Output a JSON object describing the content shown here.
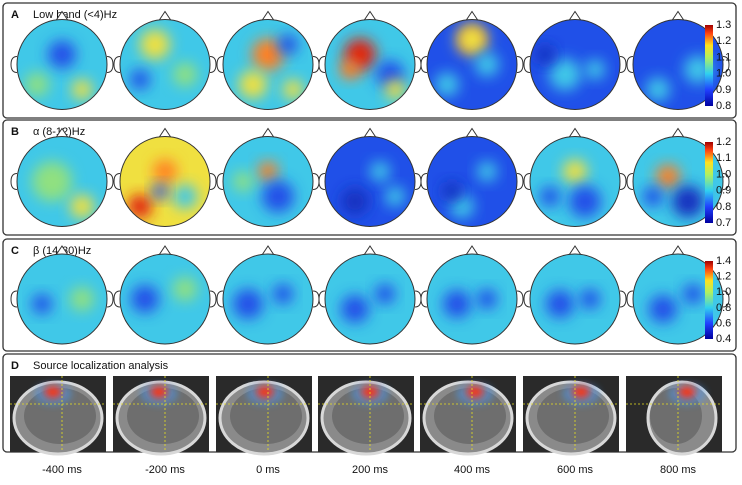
{
  "panels": [
    {
      "letter": "A",
      "title": "Low band (<4)Hz",
      "colorbar_labels": [
        "1.3",
        "1.2",
        "1.1",
        "1.0",
        "0.9",
        "0.8"
      ]
    },
    {
      "letter": "B",
      "title": "α (8-12)Hz",
      "colorbar_labels": [
        "1.2",
        "1.1",
        "1.0",
        "0.9",
        "0.8",
        "0.7"
      ]
    },
    {
      "letter": "C",
      "title": "β (14-30)Hz",
      "colorbar_labels": [
        "1.4",
        "1.2",
        "1.0",
        "0.8",
        "0.6",
        "0.4"
      ]
    },
    {
      "letter": "D",
      "title": "Source localization analysis"
    }
  ],
  "time_labels": [
    "-400 ms",
    "-200 ms",
    "0 ms",
    "200 ms",
    "400 ms",
    "600 ms",
    "800 ms"
  ]
}
